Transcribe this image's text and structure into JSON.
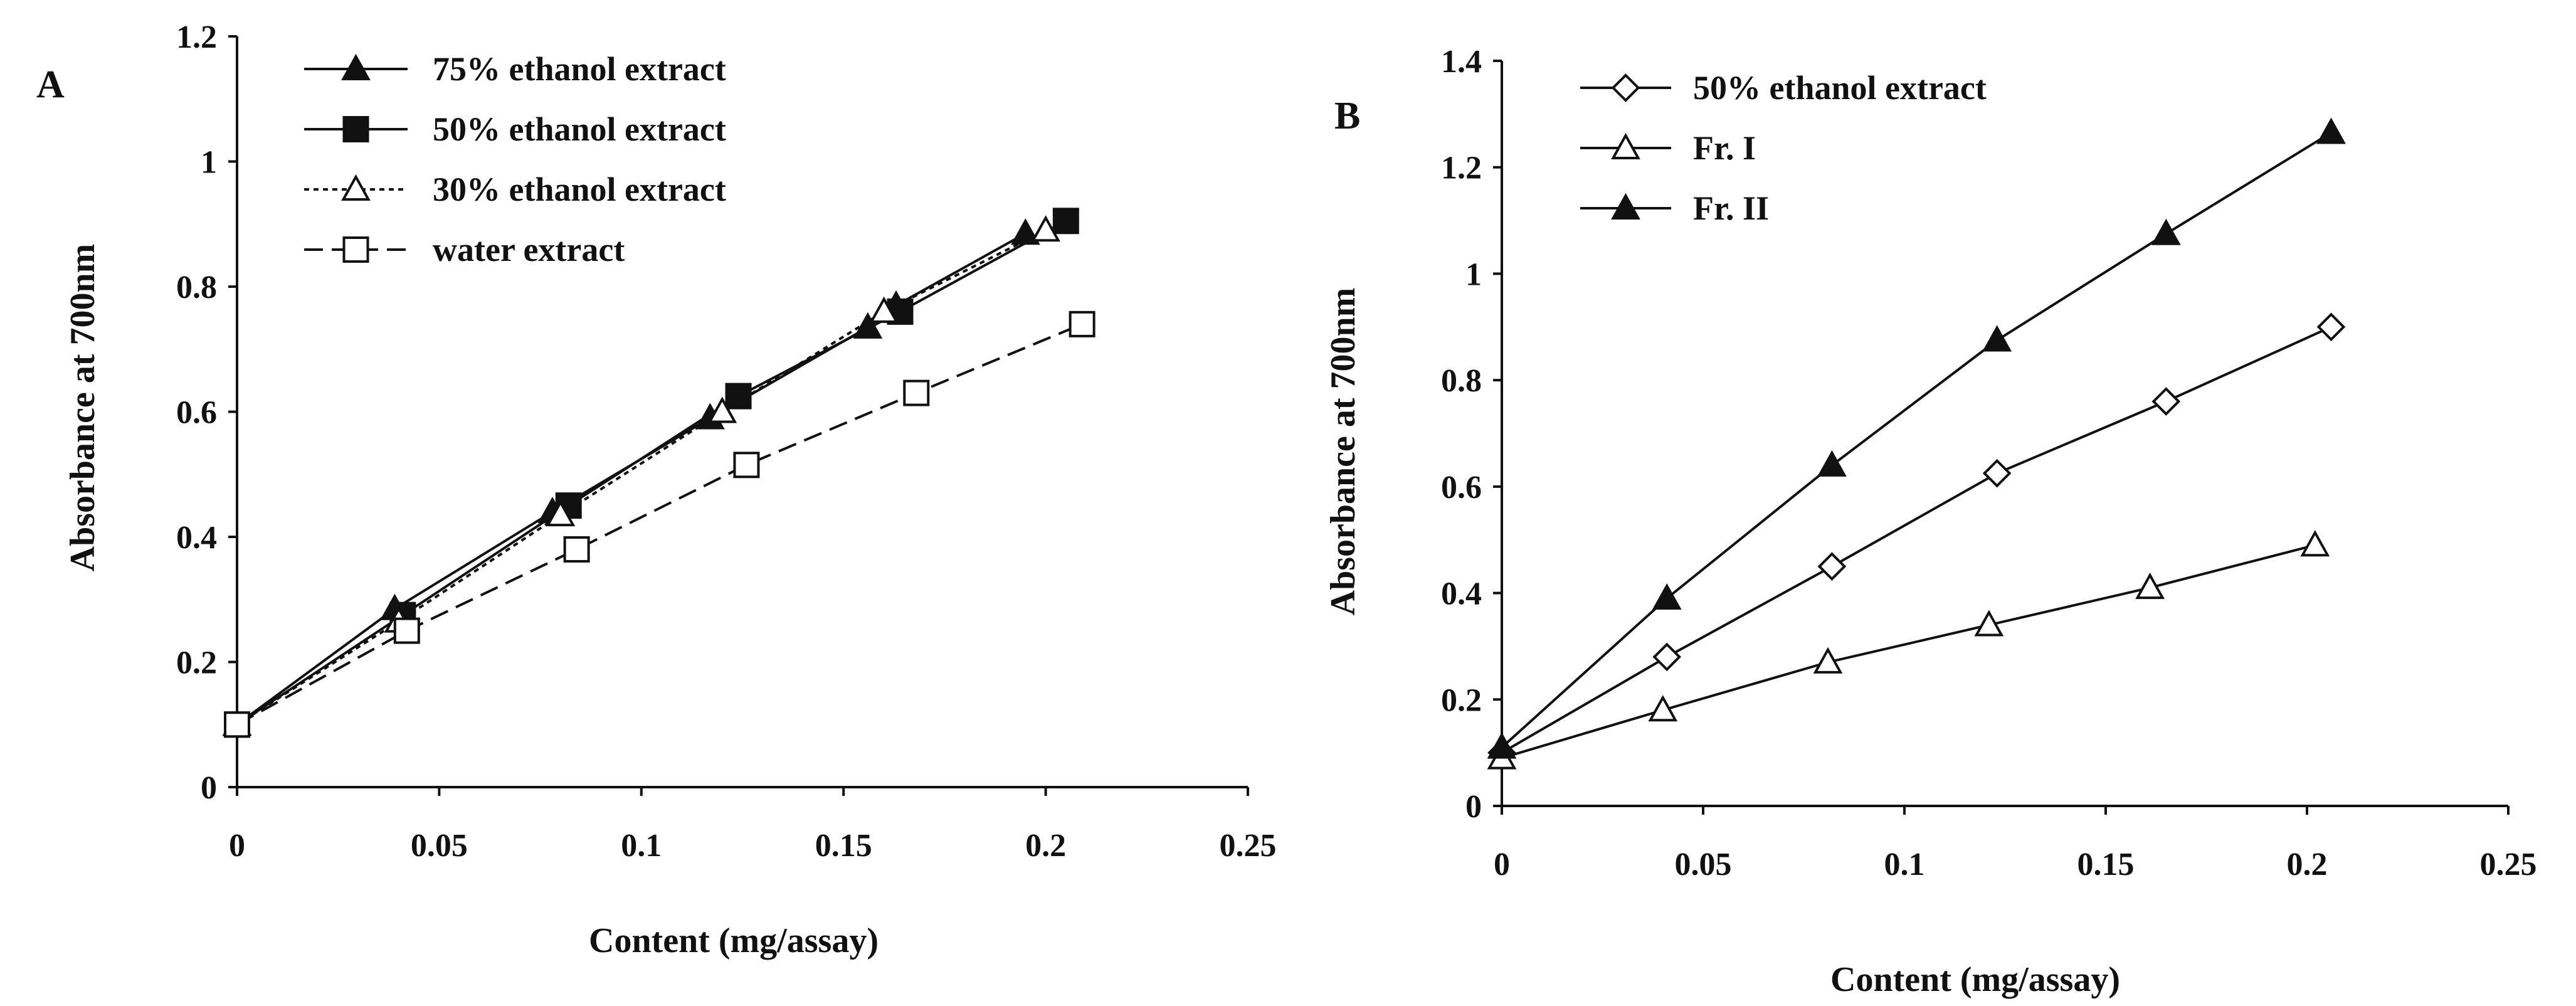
{
  "chart_data": [
    {
      "type": "line",
      "panel_label": "A",
      "xlabel": "Content (mg/assay)",
      "ylabel": "Absorbance at 700nm",
      "xlim": [
        0,
        0.25
      ],
      "ylim": [
        0,
        1.2
      ],
      "xticks": [
        "0",
        "0.05",
        "0.1",
        "0.15",
        "0.2",
        "0.25"
      ],
      "yticks": [
        "0",
        "0.2",
        "0.4",
        "0.6",
        "0.8",
        "1",
        "1.2"
      ],
      "xtick_values": [
        0,
        0.05,
        0.1,
        0.15,
        0.2,
        0.25
      ],
      "ytick_values": [
        0,
        0.2,
        0.4,
        0.6,
        0.8,
        1.0,
        1.2
      ],
      "legend_position": "top-left",
      "grid": false,
      "series": [
        {
          "name": "75% ethanol extract",
          "marker": "filled-triangle",
          "dash": "solid",
          "x": [
            0,
            0.039,
            0.078,
            0.117,
            0.156,
            0.163,
            0.195
          ],
          "y": [
            0.1,
            0.285,
            0.44,
            0.59,
            0.735,
            0.77,
            0.885
          ]
        },
        {
          "name": "50% ethanol extract",
          "marker": "filled-square",
          "dash": "solid",
          "x": [
            0,
            0.041,
            0.082,
            0.124,
            0.164,
            0.205
          ],
          "y": [
            0.1,
            0.275,
            0.45,
            0.625,
            0.76,
            0.905
          ]
        },
        {
          "name": "30% ethanol extract",
          "marker": "open-triangle",
          "dash": "dotted",
          "x": [
            0,
            0.04,
            0.08,
            0.12,
            0.16,
            0.2
          ],
          "y": [
            0.1,
            0.265,
            0.435,
            0.6,
            0.76,
            0.89
          ]
        },
        {
          "name": "water extract",
          "marker": "open-square",
          "dash": "dashed",
          "x": [
            0,
            0.042,
            0.084,
            0.126,
            0.168,
            0.209
          ],
          "y": [
            0.1,
            0.25,
            0.38,
            0.515,
            0.63,
            0.74
          ]
        }
      ]
    },
    {
      "type": "line",
      "panel_label": "B",
      "xlabel": "Content (mg/assay)",
      "ylabel": "Absorbance at 700nm",
      "xlim": [
        0,
        0.25
      ],
      "ylim": [
        0,
        1.4
      ],
      "xticks": [
        "0",
        "0.05",
        "0.1",
        "0.15",
        "0.2",
        "0.25"
      ],
      "yticks": [
        "0",
        "0.2",
        "0.4",
        "0.6",
        "0.8",
        "1",
        "1.2",
        "1.4"
      ],
      "xtick_values": [
        0,
        0.05,
        0.1,
        0.15,
        0.2,
        0.25
      ],
      "ytick_values": [
        0,
        0.2,
        0.4,
        0.6,
        0.8,
        1.0,
        1.2,
        1.4
      ],
      "legend_position": "top-left",
      "grid": false,
      "series": [
        {
          "name": "50% ethanol extract",
          "marker": "open-diamond",
          "dash": "solid",
          "x": [
            0,
            0.041,
            0.082,
            0.123,
            0.165,
            0.206
          ],
          "y": [
            0.1,
            0.28,
            0.45,
            0.625,
            0.76,
            0.9
          ]
        },
        {
          "name": "Fr. I",
          "marker": "open-triangle",
          "dash": "solid",
          "x": [
            0,
            0.04,
            0.081,
            0.121,
            0.161,
            0.202
          ],
          "y": [
            0.09,
            0.18,
            0.27,
            0.34,
            0.41,
            0.49
          ]
        },
        {
          "name": "Fr. II",
          "marker": "filled-triangle",
          "dash": "solid",
          "x": [
            0,
            0.041,
            0.082,
            0.123,
            0.165,
            0.206
          ],
          "y": [
            0.11,
            0.39,
            0.64,
            0.875,
            1.075,
            1.265
          ]
        }
      ]
    }
  ]
}
